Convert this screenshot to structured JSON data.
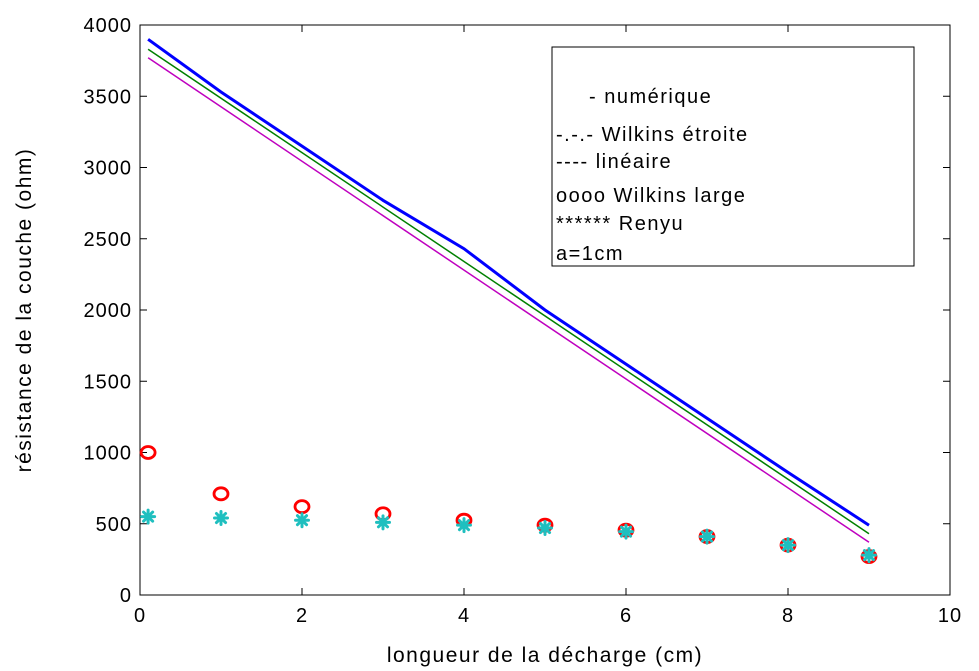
{
  "chart_data": {
    "type": "line",
    "title": "",
    "xlabel": "longueur de la décharge (cm)",
    "ylabel": "résistance de la couche (ohm)",
    "xlim": [
      0,
      10
    ],
    "ylim": [
      0,
      4000
    ],
    "xticks": [
      0,
      2,
      4,
      6,
      8,
      10
    ],
    "yticks": [
      0,
      500,
      1000,
      1500,
      2000,
      2500,
      3000,
      3500,
      4000
    ],
    "grid": false,
    "legend_position": "top-right",
    "legend_entries": [
      "-   numérique",
      "-.-.-  Wilkins étroite",
      "----   linéaire",
      "oooo   Wilkins large",
      "******   Renyu",
      "a=1cm"
    ],
    "series": [
      {
        "style": "line",
        "color": "#0000ff",
        "x": [
          0.1,
          1,
          2,
          3,
          4,
          5,
          6,
          7,
          8,
          9
        ],
        "y": [
          3900,
          3530,
          3150,
          2770,
          2430,
          2000,
          1620,
          1240,
          860,
          490
        ]
      },
      {
        "style": "line",
        "color": "#008000",
        "x": [
          0.1,
          9
        ],
        "y": [
          3830,
          430
        ]
      },
      {
        "style": "line",
        "color": "#bf00bf",
        "x": [
          0.1,
          9
        ],
        "y": [
          3770,
          370
        ]
      },
      {
        "style": "circle",
        "color": "#ff0000",
        "x": [
          0.1,
          1,
          2,
          3,
          4,
          5,
          6,
          7,
          8,
          9
        ],
        "y": [
          1000,
          710,
          620,
          570,
          525,
          490,
          455,
          410,
          350,
          270
        ]
      },
      {
        "style": "star",
        "color": "#1fbfbf",
        "x": [
          0.1,
          1,
          2,
          3,
          4,
          5,
          6,
          7,
          8,
          9
        ],
        "y": [
          550,
          540,
          525,
          510,
          490,
          470,
          445,
          410,
          350,
          280
        ]
      }
    ]
  }
}
